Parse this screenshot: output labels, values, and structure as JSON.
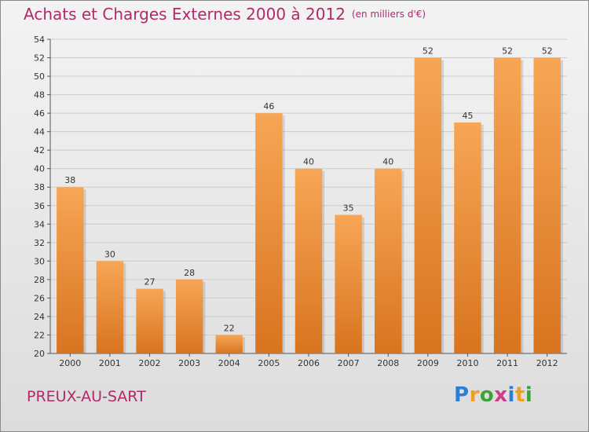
{
  "header": {
    "title": "Achats et Charges Externes 2000 à 2012",
    "unit": "(en milliers d'€)"
  },
  "footer": {
    "commune": "PREUX-AU-SART",
    "logo": [
      "P",
      "r",
      "o",
      "x",
      "i",
      "t",
      "i"
    ],
    "logo_colors": [
      "#2a7fd4",
      "#f0a020",
      "#3aa33a",
      "#d03a8a",
      "#2a7fd4",
      "#f0a020",
      "#3aa33a"
    ]
  },
  "chart_data": {
    "type": "bar",
    "title": "Achats et Charges Externes 2000 à 2012",
    "categories": [
      "2000",
      "2001",
      "2002",
      "2003",
      "2004",
      "2005",
      "2006",
      "2007",
      "2008",
      "2009",
      "2010",
      "2011",
      "2012"
    ],
    "values": [
      38,
      30,
      27,
      28,
      22,
      46,
      40,
      35,
      40,
      52,
      45,
      52,
      52
    ],
    "ylim": [
      20,
      54
    ],
    "yticks": [
      20,
      22,
      24,
      26,
      28,
      30,
      32,
      34,
      36,
      38,
      40,
      42,
      44,
      46,
      48,
      50,
      52,
      54
    ],
    "grid": true,
    "colors": {
      "bar_top": "#f7a656",
      "bar_bottom": "#d8741f",
      "grid": "#cccccc"
    }
  }
}
